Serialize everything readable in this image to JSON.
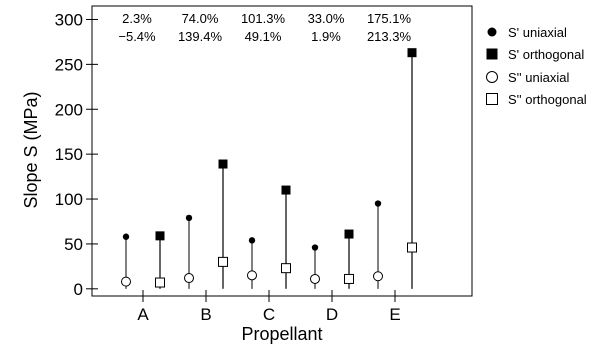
{
  "chart_data": {
    "type": "scatter",
    "xlabel": "Propellant",
    "ylabel": "Slope S (MPa)",
    "ylim": [
      -8,
      315
    ],
    "yticks": [
      0,
      50,
      100,
      150,
      200,
      250,
      300
    ],
    "grid": false,
    "legend_position": "right",
    "categories": [
      "A",
      "B",
      "C",
      "D",
      "E"
    ],
    "series": [
      {
        "name": "S' uniaxial",
        "marker": "filled-circle",
        "values": [
          58,
          79,
          54,
          46,
          95
        ]
      },
      {
        "name": "S' orthogonal",
        "marker": "filled-square",
        "values": [
          59,
          139,
          110,
          61,
          263
        ]
      },
      {
        "name": "S'' uniaxial",
        "marker": "open-circle",
        "values": [
          8,
          12,
          15,
          11,
          14
        ]
      },
      {
        "name": "S'' orthogonal",
        "marker": "open-square",
        "values": [
          7,
          30,
          23,
          11,
          46
        ]
      }
    ],
    "annotations": {
      "top_row": [
        "2.3%",
        "74.0%",
        "101.3%",
        "33.0%",
        "175.1%"
      ],
      "bottom_row": [
        "−5.4%",
        "139.4%",
        "49.1%",
        "1.9%",
        "213.3%"
      ]
    }
  }
}
